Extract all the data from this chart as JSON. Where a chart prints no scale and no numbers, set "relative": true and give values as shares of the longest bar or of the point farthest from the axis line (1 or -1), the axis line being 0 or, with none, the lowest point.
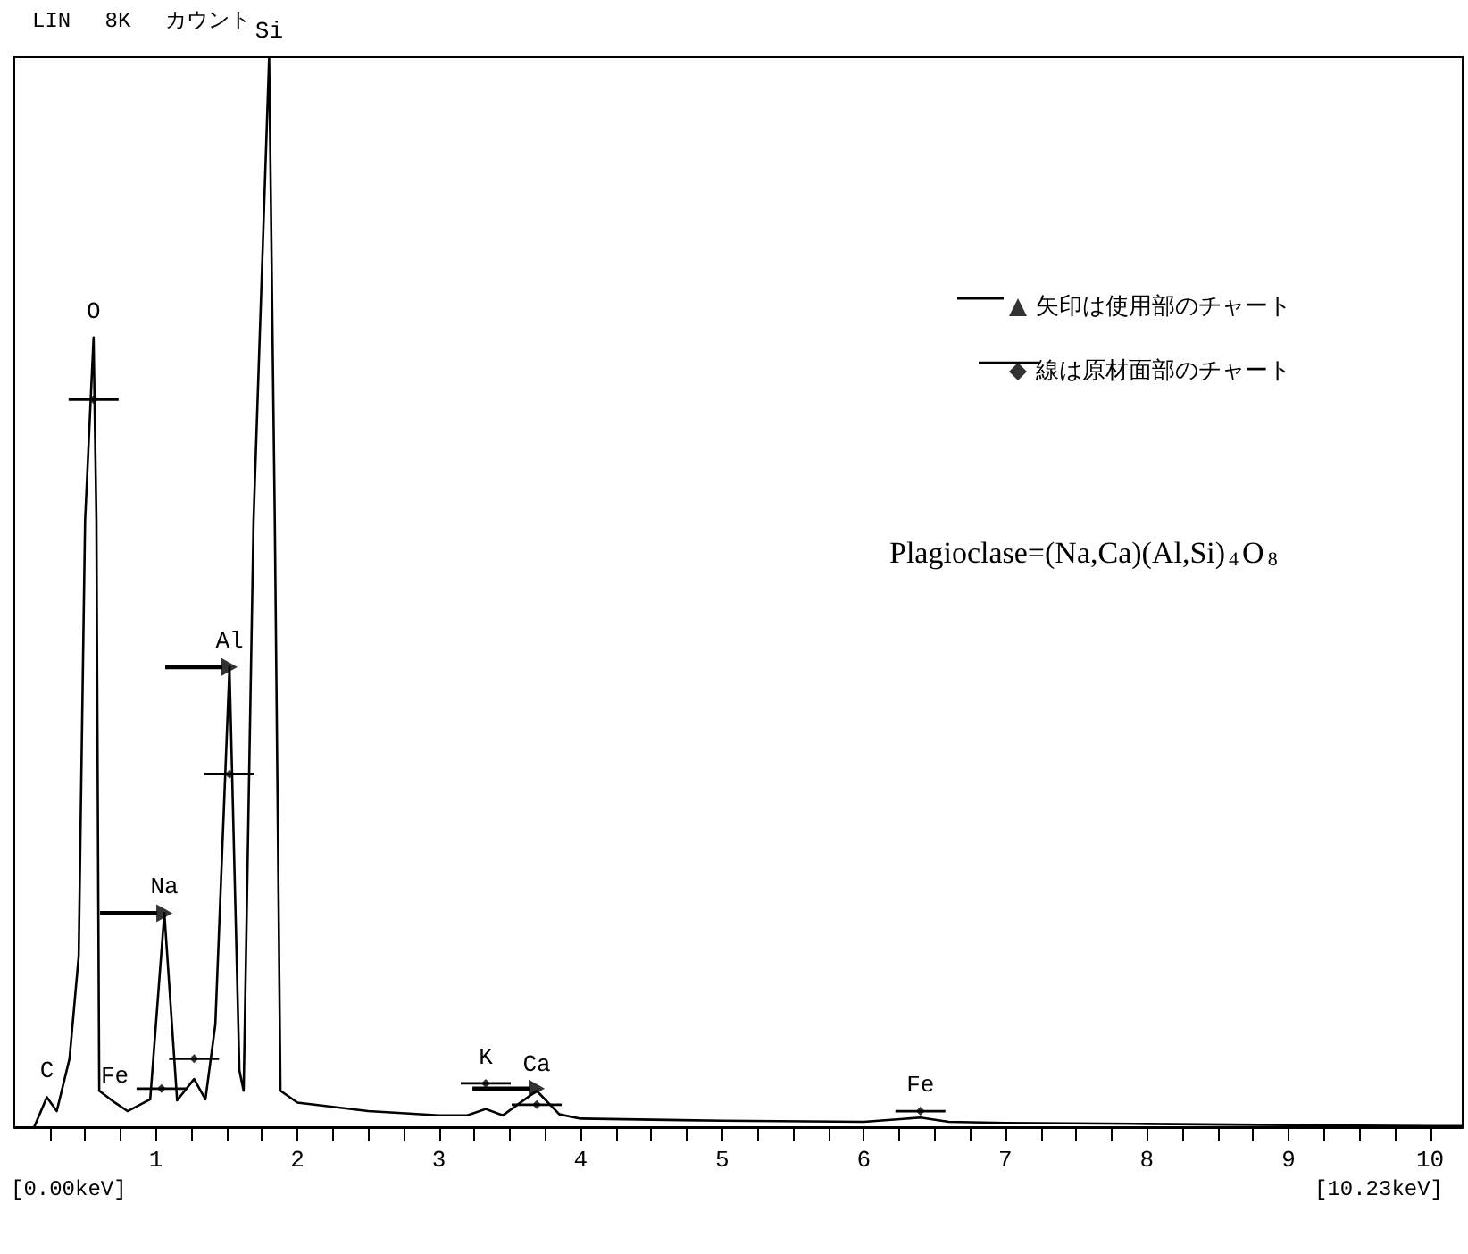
{
  "chart_data": {
    "type": "line",
    "relative": true,
    "xlim": [
      0,
      10.23
    ],
    "xticks": [
      {
        "value": 0.25,
        "label": null
      },
      {
        "value": 0.5,
        "label": null
      },
      {
        "value": 0.75,
        "label": null
      },
      1,
      {
        "value": 1.25,
        "label": null
      },
      {
        "value": 1.5,
        "label": null
      },
      {
        "value": 1.75,
        "label": null
      },
      2,
      {
        "value": 2.25,
        "label": null
      },
      {
        "value": 2.5,
        "label": null
      },
      {
        "value": 2.75,
        "label": null
      },
      3,
      {
        "value": 3.25,
        "label": null
      },
      {
        "value": 3.5,
        "label": null
      },
      {
        "value": 3.75,
        "label": null
      },
      4,
      {
        "value": 4.25,
        "label": null
      },
      {
        "value": 4.5,
        "label": null
      },
      {
        "value": 4.75,
        "label": null
      },
      5,
      {
        "value": 5.25,
        "label": null
      },
      {
        "value": 5.5,
        "label": null
      },
      {
        "value": 5.75,
        "label": null
      },
      6,
      {
        "value": 6.25,
        "label": null
      },
      {
        "value": 6.5,
        "label": null
      },
      {
        "value": 6.75,
        "label": null
      },
      7,
      {
        "value": 7.25,
        "label": null
      },
      {
        "value": 7.5,
        "label": null
      },
      {
        "value": 7.75,
        "label": null
      },
      8,
      {
        "value": 8.25,
        "label": null
      },
      {
        "value": 8.5,
        "label": null
      },
      {
        "value": 8.75,
        "label": null
      },
      9,
      {
        "value": 9.25,
        "label": null
      },
      {
        "value": 9.5,
        "label": null
      },
      {
        "value": 9.75,
        "label": null
      },
      10
    ],
    "grid": false,
    "legend": "top right",
    "line_style": "solid",
    "series": [
      {
        "color": "#000000",
        "x": [
          0.14,
          0.23,
          0.3,
          0.39,
          0.455,
          0.5,
          0.56,
          0.58,
          0.6,
          0.71,
          0.8,
          0.96,
          1.06,
          1.15,
          1.27,
          1.35,
          1.42,
          1.52,
          1.59,
          1.62,
          1.69,
          1.8,
          1.84,
          1.88,
          2.0,
          2.5,
          3.0,
          3.2,
          3.33,
          3.45,
          3.69,
          3.85,
          4.0,
          5.0,
          6.0,
          6.4,
          6.6,
          7.0,
          8.0,
          9.0,
          10.0,
          10.23
        ],
        "values": [
          0.0,
          0.028,
          0.015,
          0.064,
          0.16,
          0.567,
          0.738,
          0.567,
          0.034,
          0.023,
          0.015,
          0.026,
          0.2,
          0.025,
          0.045,
          0.026,
          0.096,
          0.43,
          0.053,
          0.034,
          0.567,
          1.0,
          0.567,
          0.034,
          0.023,
          0.015,
          0.011,
          0.011,
          0.017,
          0.011,
          0.034,
          0.012,
          0.008,
          0.006,
          0.005,
          0.009,
          0.005,
          0.004,
          0.003,
          0.002,
          0.001,
          0.001
        ]
      },
      {
        "type": "scatter",
        "marker": "triangle",
        "name": "矢印は使用部のチャート",
        "color": "#000000",
        "x": [
          1.06,
          1.52,
          3.69
        ],
        "values": [
          0.2,
          0.43,
          0.036
        ]
      },
      {
        "type": "scatter",
        "marker": "diamond",
        "name": "線は原材面部のチャート",
        "color": "#000000",
        "x": [
          0.56,
          1.04,
          1.27,
          1.52,
          3.33,
          3.69,
          6.4
        ],
        "values": [
          0.68,
          0.036,
          0.064,
          0.33,
          0.041,
          0.021,
          0.015
        ]
      }
    ],
    "annotations": [
      "LIN　 8K　 カウント",
      "[0.00keV]",
      "[10.23keV]",
      "Plagioclase=(Na,Ca)(Al,Si)$_{4}$O$_{8}$",
      {
        "text": "C",
        "x": 0.23,
        "y": 0.028
      },
      {
        "text": "O",
        "x": 0.56,
        "y": 0.738
      },
      {
        "text": "Fe",
        "x": 0.71,
        "y": 0.023
      },
      {
        "text": "Na",
        "x": 1.06,
        "y": 0.2
      },
      {
        "text": "Al",
        "x": 1.52,
        "y": 0.43
      },
      {
        "text": "Si",
        "x": 1.8,
        "y": 1.0
      },
      {
        "text": "K",
        "x": 3.33,
        "y": 0.041
      },
      {
        "text": "Ca",
        "x": 3.69,
        "y": 0.034
      },
      {
        "text": "Fe",
        "x": 6.4,
        "y": 0.015
      }
    ]
  }
}
